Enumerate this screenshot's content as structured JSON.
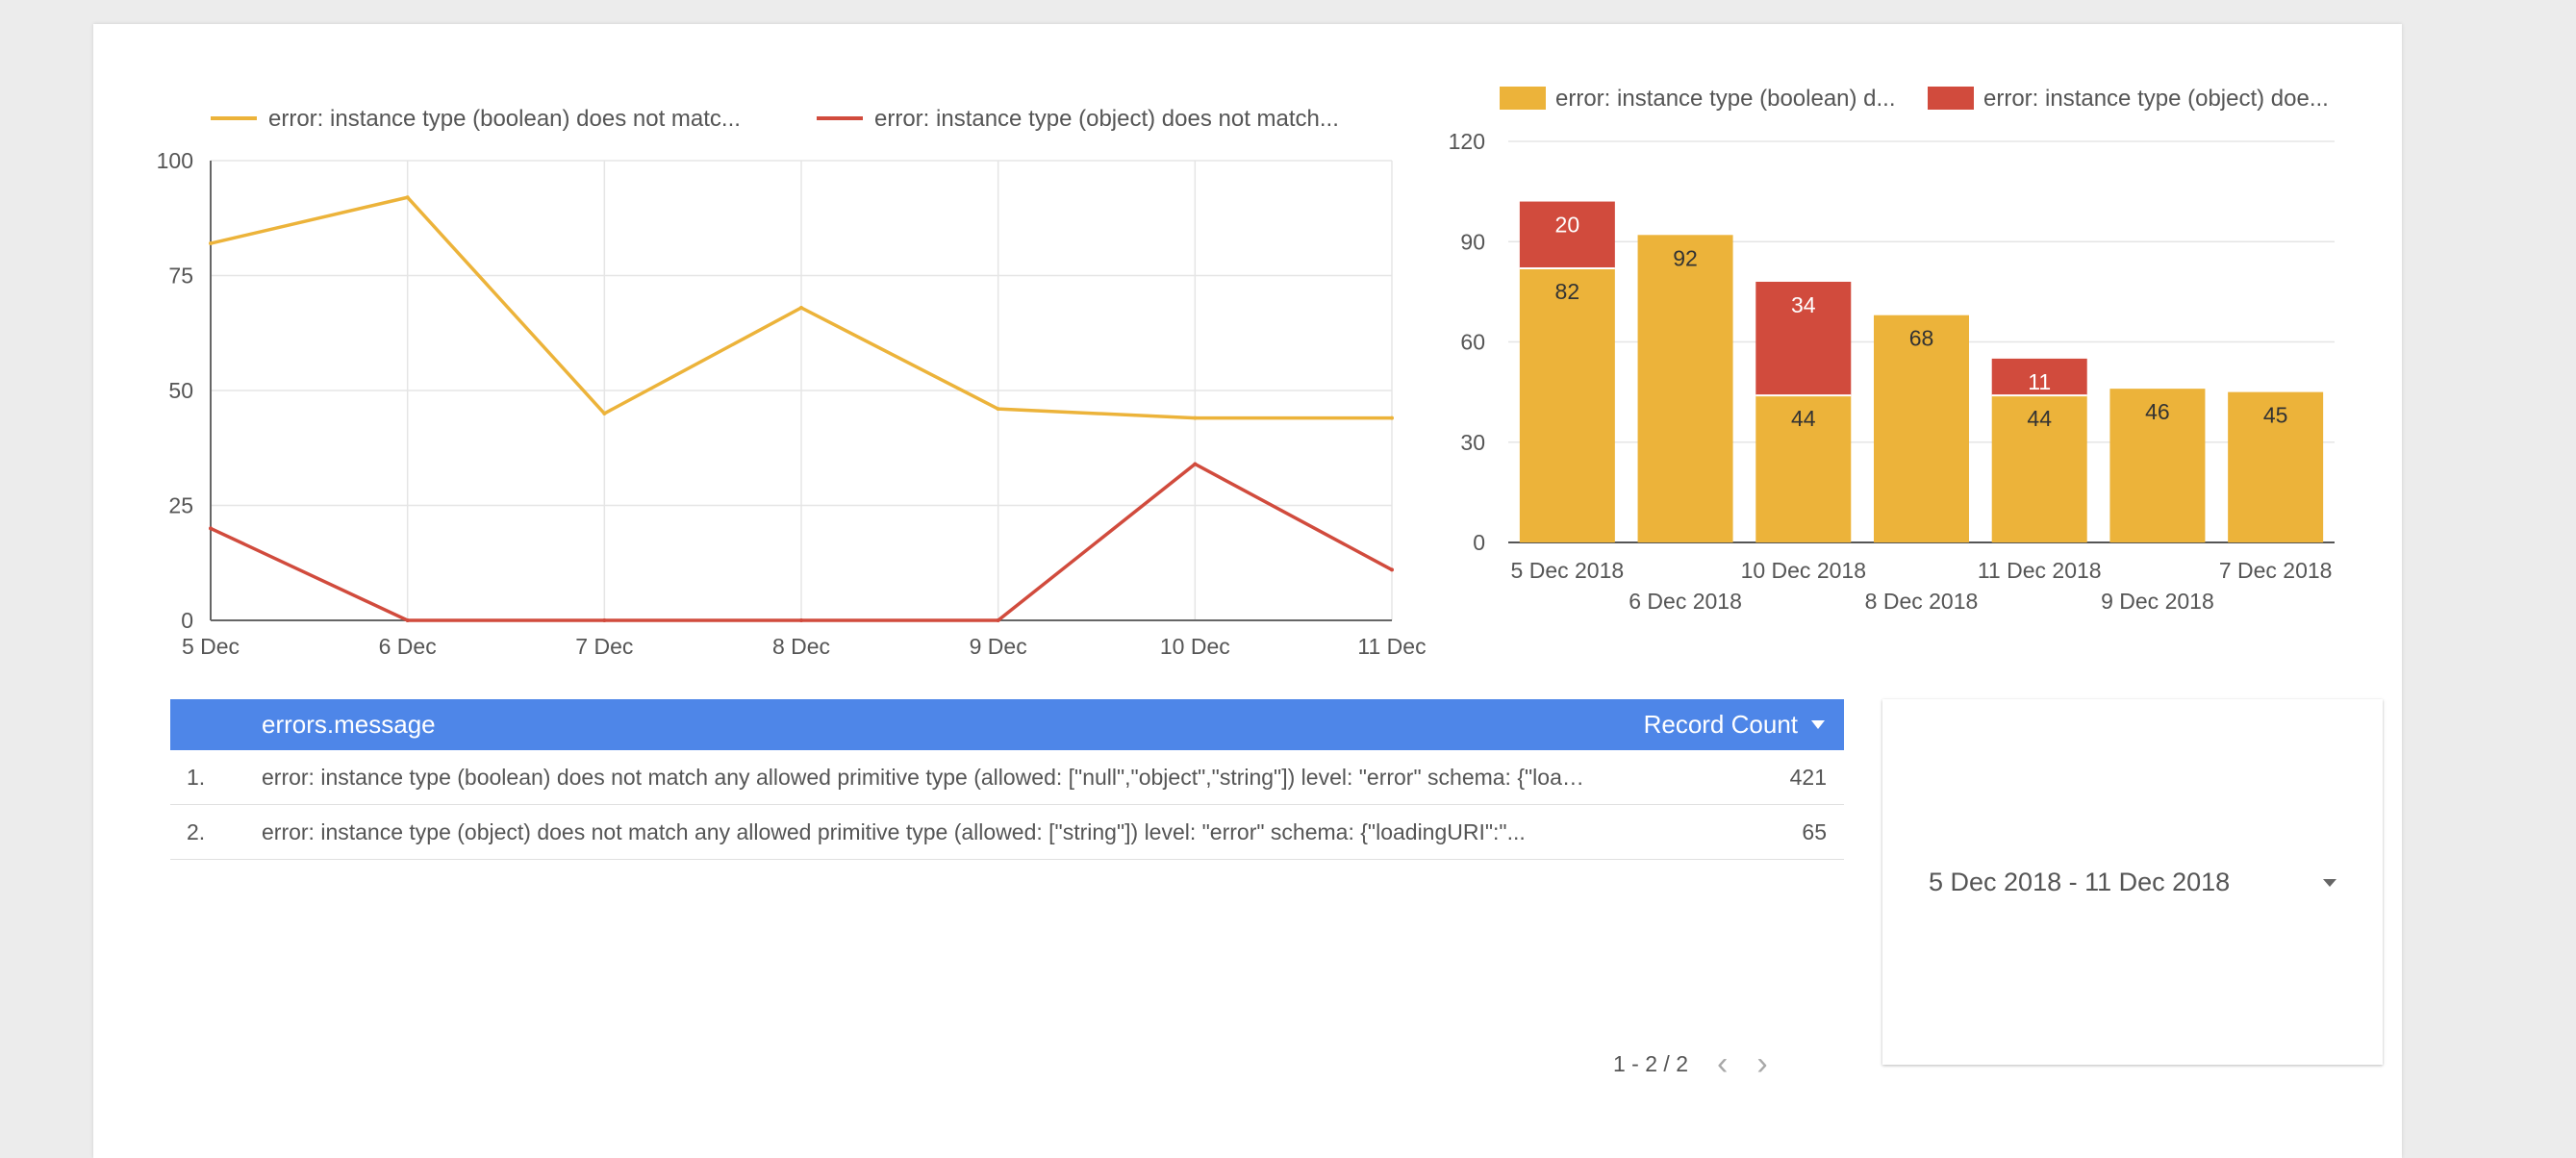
{
  "line_chart_legend": [
    {
      "label": "error: instance type (boolean) does not matc...",
      "color": "#ecb33a"
    },
    {
      "label": "error: instance type (object) does not match...",
      "color": "#d14b3d"
    }
  ],
  "bar_chart_legend": [
    {
      "label": "error: instance type (boolean) d...",
      "color": "#ecb33a"
    },
    {
      "label": "error: instance type (object) doe...",
      "color": "#d14b3d"
    }
  ],
  "chart_data": [
    {
      "type": "line",
      "x": [
        "5 Dec",
        "6 Dec",
        "7 Dec",
        "8 Dec",
        "9 Dec",
        "10 Dec",
        "11 Dec"
      ],
      "series": [
        {
          "values": [
            82,
            92,
            45,
            68,
            46,
            44,
            44
          ],
          "color": "#ecb33a"
        },
        {
          "values": [
            20,
            0,
            0,
            0,
            0,
            34,
            11
          ],
          "color": "#d14b3d"
        }
      ],
      "yticks": [
        "0",
        "25",
        "50",
        "75",
        "100"
      ],
      "ylim": [
        0,
        100
      ],
      "grid": true,
      "legend": "top"
    },
    {
      "type": "bar",
      "stacked": true,
      "categories": [
        "5 Dec 2018",
        "6 Dec 2018",
        "10 Dec 2018",
        "8 Dec 2018",
        "11 Dec 2018",
        "9 Dec 2018",
        "7 Dec 2018"
      ],
      "series": [
        {
          "values": [
            82,
            92,
            44,
            68,
            44,
            46,
            45
          ],
          "labels": [
            "82",
            "92",
            "44",
            "68",
            "44",
            "46",
            "45"
          ],
          "color": "#ecb33a"
        },
        {
          "values": [
            20,
            0,
            34,
            0,
            11,
            0,
            0
          ],
          "labels": [
            "20",
            "",
            "34",
            "",
            "11",
            "",
            ""
          ],
          "color": "#d14b3d"
        }
      ],
      "yticks": [
        "0",
        "30",
        "60",
        "90",
        "120"
      ],
      "ylim": [
        0,
        120
      ],
      "grid": true,
      "legend": "top"
    }
  ],
  "table": {
    "header_message": "errors.message",
    "header_count": "Record Count",
    "rows": [
      {
        "index": "1.",
        "message": "error: instance type (boolean) does not match any allowed primitive type (allowed: [\"null\",\"object\",\"string\"]) level: \"error\" schema: {\"loadingURI\":\"...",
        "count": "421"
      },
      {
        "index": "2.",
        "message": "error: instance type (object) does not match any allowed primitive type (allowed: [\"string\"]) level: \"error\" schema: {\"loadingURI\":\"...",
        "count": "65"
      }
    ],
    "pagination": "1 - 2 / 2"
  },
  "date_range": {
    "value": "5 Dec 2018 - 11 Dec 2018"
  }
}
